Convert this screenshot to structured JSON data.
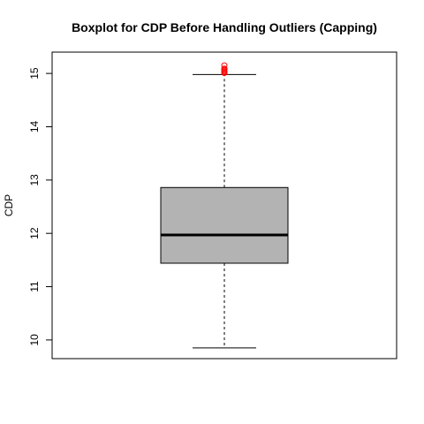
{
  "chart_data": {
    "type": "box",
    "title": "Boxplot for CDP Before Handling Outliers (Capping)",
    "xlabel": "",
    "ylabel": "CDP",
    "ylim": [
      9.65,
      15.4
    ],
    "y_ticks": [
      10,
      11,
      12,
      13,
      14,
      15
    ],
    "grid": false,
    "box": {
      "min": 9.85,
      "q1": 11.44,
      "median": 11.97,
      "q3": 12.86,
      "max": 14.98,
      "outliers": [
        15.01,
        15.03,
        15.05,
        15.07,
        15.09,
        15.15
      ]
    },
    "colors": {
      "box_fill": "#b3b3b3",
      "outlier": "#ff0000"
    }
  }
}
